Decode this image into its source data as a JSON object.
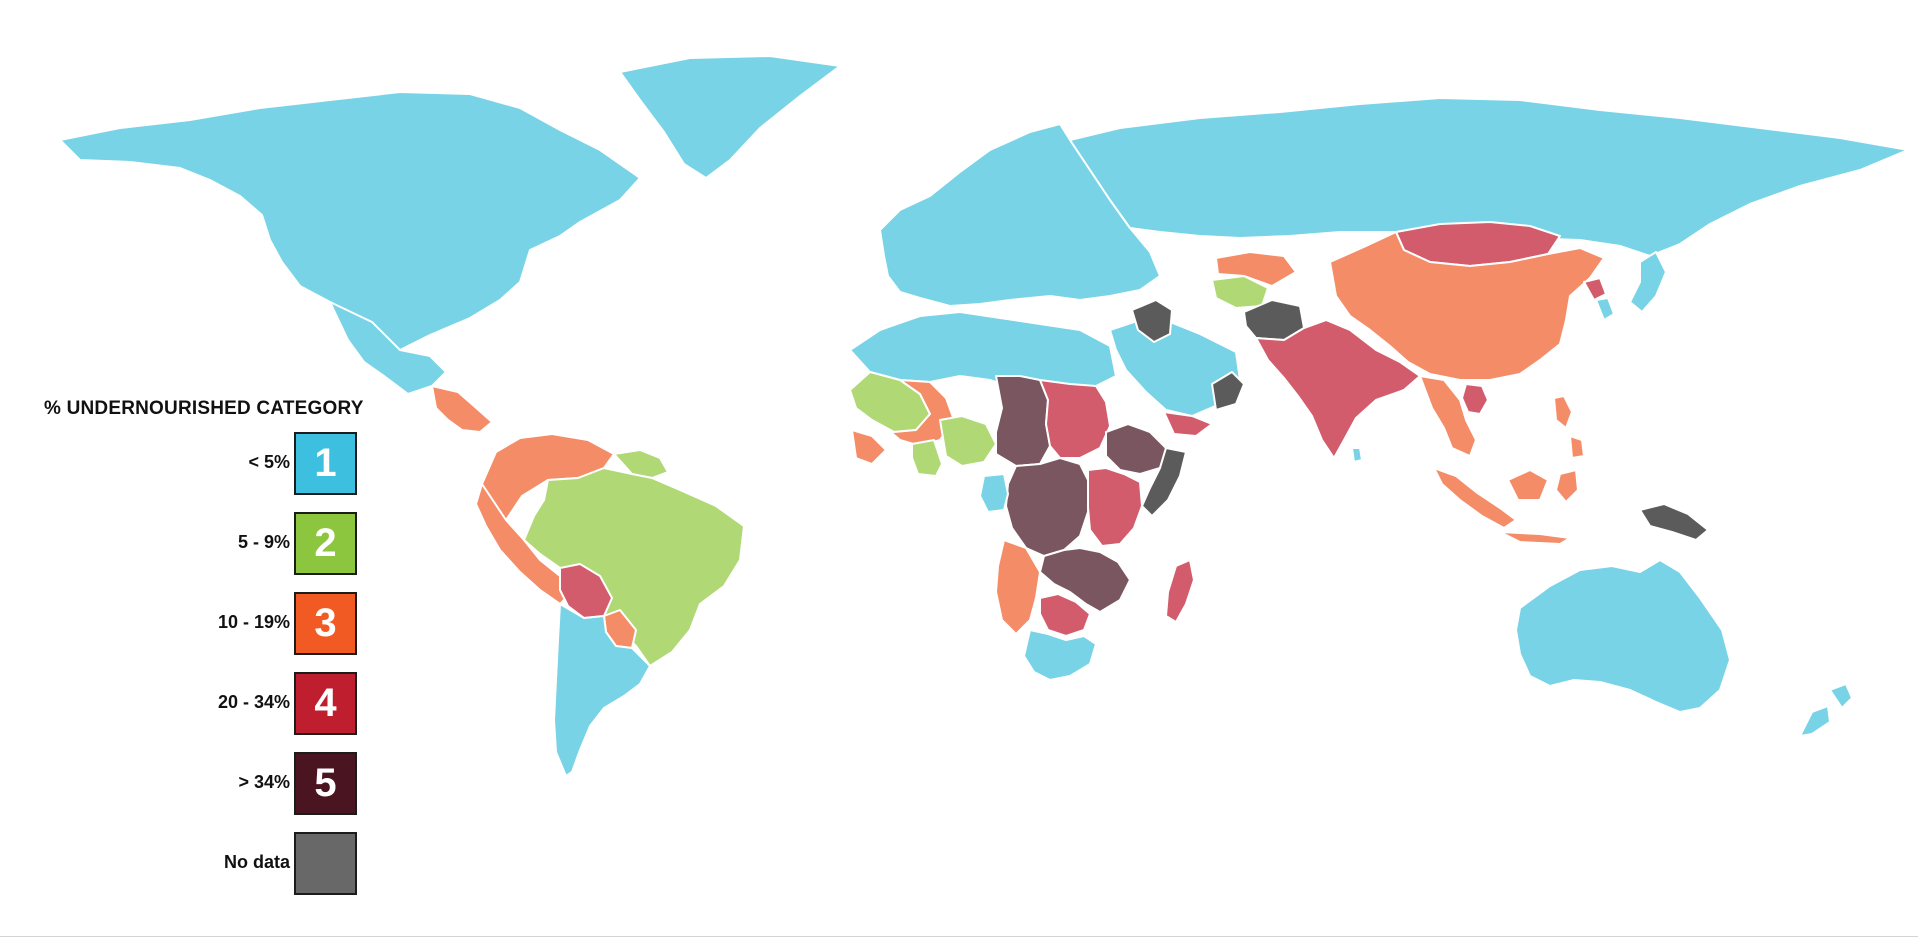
{
  "colors": {
    "background": "#ffffff",
    "category_1": "#78d3e6",
    "category_2": "#b0d976",
    "category_3": "#f48c68",
    "category_4": "#d25c6c",
    "category_5": "#7a5660",
    "no_data": "#5b5b5b",
    "border": "#ffffff"
  },
  "legend": {
    "title": "% UNDERNOURISHED  CATEGORY",
    "items": [
      {
        "label": "< 5%",
        "number": "1",
        "color": "#3dbfe0"
      },
      {
        "label": "5 - 9%",
        "number": "2",
        "color": "#8cc63e"
      },
      {
        "label": "10 - 19%",
        "number": "3",
        "color": "#f15a22"
      },
      {
        "label": "20 - 34%",
        "number": "4",
        "color": "#be1e2d"
      },
      {
        "label": "> 34%",
        "number": "5",
        "color": "#4a1420"
      },
      {
        "label": "No data",
        "number": "",
        "color": "#686868"
      }
    ]
  },
  "regions": [
    {
      "name": "north-america",
      "category": "1"
    },
    {
      "name": "greenland",
      "category": "1"
    },
    {
      "name": "mexico",
      "category": "1"
    },
    {
      "name": "central-america",
      "category": "3"
    },
    {
      "name": "colombia-venezuela",
      "category": "3"
    },
    {
      "name": "peru-ecuador",
      "category": "3"
    },
    {
      "name": "guianas",
      "category": "2"
    },
    {
      "name": "brazil",
      "category": "2"
    },
    {
      "name": "bolivia",
      "category": "4"
    },
    {
      "name": "paraguay",
      "category": "3"
    },
    {
      "name": "southern-cone",
      "category": "1"
    },
    {
      "name": "europe",
      "category": "1"
    },
    {
      "name": "russia",
      "category": "1"
    },
    {
      "name": "north-africa",
      "category": "1"
    },
    {
      "name": "middle-east",
      "category": "1"
    },
    {
      "name": "iraq",
      "category": "no-data"
    },
    {
      "name": "turkmenistan",
      "category": "2"
    },
    {
      "name": "central-asia",
      "category": "3"
    },
    {
      "name": "afghanistan",
      "category": "no-data"
    },
    {
      "name": "yemen",
      "category": "4"
    },
    {
      "name": "oman",
      "category": "no-data"
    },
    {
      "name": "south-asia",
      "category": "4"
    },
    {
      "name": "mongolia",
      "category": "4"
    },
    {
      "name": "china",
      "category": "3"
    },
    {
      "name": "north-korea",
      "category": "4"
    },
    {
      "name": "southeast-asia",
      "category": "3"
    },
    {
      "name": "cambodia-laos",
      "category": "4"
    },
    {
      "name": "japan-korea",
      "category": "1"
    },
    {
      "name": "indonesia",
      "category": "3"
    },
    {
      "name": "philippines",
      "category": "3"
    },
    {
      "name": "papua-new-guinea",
      "category": "no-data"
    },
    {
      "name": "australia",
      "category": "1"
    },
    {
      "name": "new-zealand",
      "category": "1"
    },
    {
      "name": "mali-mauritania",
      "category": "2"
    },
    {
      "name": "west-sahel",
      "category": "3"
    },
    {
      "name": "ghana-togo",
      "category": "2"
    },
    {
      "name": "nigeria",
      "category": "2"
    },
    {
      "name": "chad-car",
      "category": "5"
    },
    {
      "name": "sudan",
      "category": "4"
    },
    {
      "name": "ethiopia",
      "category": "5"
    },
    {
      "name": "somalia",
      "category": "no-data"
    },
    {
      "name": "dr-congo",
      "category": "5"
    },
    {
      "name": "gabon",
      "category": "1"
    },
    {
      "name": "east-africa",
      "category": "4"
    },
    {
      "name": "zambia-mozambique",
      "category": "5"
    },
    {
      "name": "angola-namibia",
      "category": "3"
    },
    {
      "name": "zimbabwe-botswana",
      "category": "4"
    },
    {
      "name": "south-africa",
      "category": "1"
    },
    {
      "name": "madagascar",
      "category": "4"
    },
    {
      "name": "sri-lanka",
      "category": "1"
    }
  ]
}
